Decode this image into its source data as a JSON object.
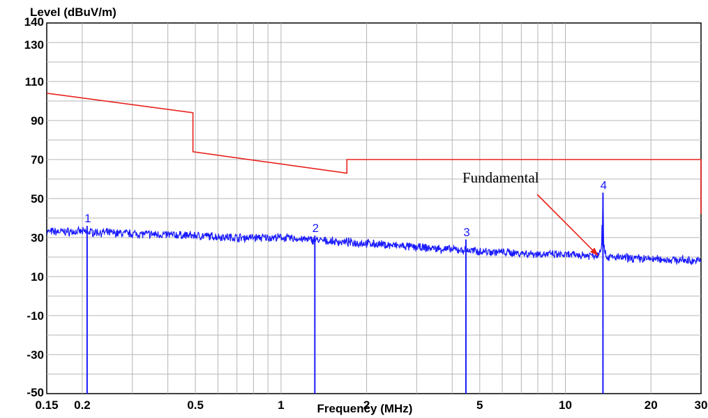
{
  "chart_data": {
    "type": "line",
    "ylabel": "Level (dBuV/m)",
    "xlabel": "Frequency (MHz)",
    "x_scale": "log",
    "xlim": [
      0.15,
      30
    ],
    "ylim": [
      -50,
      140
    ],
    "x_ticks": [
      0.15,
      0.2,
      0.5,
      1,
      2,
      5,
      10,
      20,
      30
    ],
    "x_tick_labels": [
      "0.15",
      "0.2",
      "0.5",
      "1",
      "2",
      "5",
      "10",
      "20",
      "30"
    ],
    "y_ticks": [
      -50,
      -30,
      -10,
      10,
      30,
      50,
      70,
      90,
      110,
      130,
      140
    ],
    "y_tick_labels": [
      "-50",
      "-30",
      "-10",
      "10",
      "30",
      "50",
      "70",
      "90",
      "110",
      "130",
      "140"
    ],
    "grid": true,
    "colors": {
      "limit": "#e8231c",
      "measurement": "#1a1aff",
      "annotation_arrow": "#e8231c",
      "grid": "#b4b4b4"
    },
    "series": [
      {
        "role": "limit",
        "x": [
          0.15,
          0.49,
          0.49,
          1.705,
          1.705,
          30,
          30
        ],
        "y": [
          104,
          94,
          74,
          63,
          70,
          70,
          42
        ]
      },
      {
        "role": "measurement",
        "x": [
          0.15,
          0.2,
          0.3,
          0.5,
          0.7,
          1.0,
          1.5,
          2.0,
          3.0,
          5.0,
          7.0,
          10.0,
          13.0,
          13.4,
          13.56,
          13.7,
          14.0,
          20.0,
          30.0
        ],
        "y": [
          33,
          33,
          32,
          31,
          30,
          30,
          28,
          27,
          25,
          23,
          22,
          21,
          21,
          26,
          53,
          24,
          20,
          19,
          18
        ]
      }
    ],
    "markers": [
      {
        "label": "1",
        "x": 0.208,
        "y": 36
      },
      {
        "label": "2",
        "x": 1.315,
        "y": 31
      },
      {
        "label": "3",
        "x": 4.47,
        "y": 29
      },
      {
        "label": "4",
        "x": 13.56,
        "y": 53
      }
    ],
    "annotations": [
      {
        "text": "Fundamental",
        "x": 13.3,
        "y": 22
      }
    ]
  }
}
